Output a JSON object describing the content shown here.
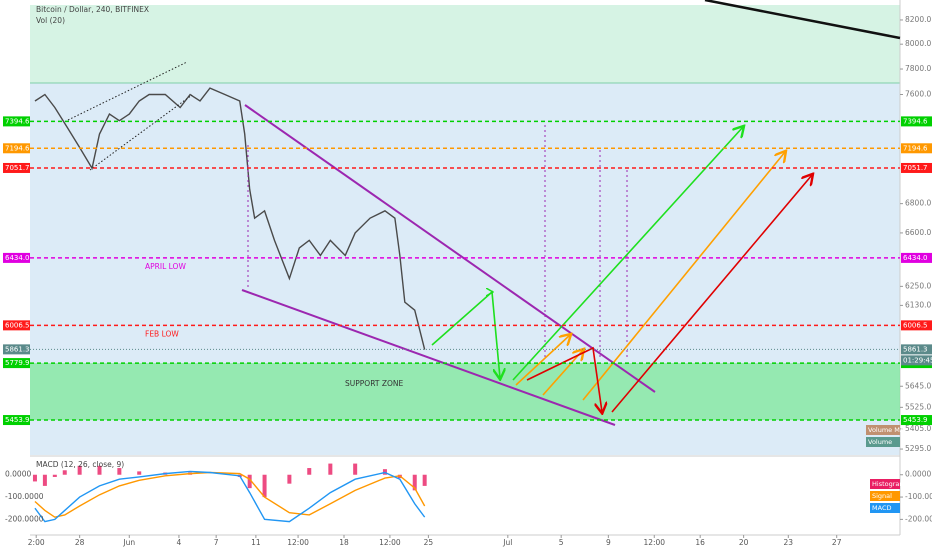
{
  "chart_data": [
    {
      "type": "line",
      "title": "Bitcoin / Dollar, 240, BITFINEX",
      "subtitle": "Vol (20)",
      "log_scale": true,
      "x": [
        -3.6,
        -2.8,
        -2.0,
        -1.2,
        0,
        1.0,
        1.6,
        2.4,
        3.2,
        4.0,
        4.8,
        5.6,
        6.9,
        8.1,
        8.9,
        9.7,
        10.5,
        11.7,
        12.9,
        13.3,
        13.7,
        14.1,
        14.9,
        15.7,
        16.9,
        17.7,
        18.5,
        19.4,
        20.2,
        21.4,
        22.2,
        23.4,
        24.6,
        25.4,
        25.8,
        26.2,
        27.0,
        27.8
      ],
      "series": [
        {
          "color": "#4a4a4a",
          "values": [
            7550,
            7600,
            7500,
            7380,
            7200,
            7050,
            7300,
            7450,
            7400,
            7450,
            7550,
            7600,
            7600,
            7500,
            7600,
            7550,
            7650,
            7600,
            7550,
            7300,
            6900,
            6700,
            6750,
            6550,
            6300,
            6500,
            6550,
            6450,
            6550,
            6450,
            6600,
            6700,
            6750,
            6700,
            6450,
            6150,
            6100,
            5860
          ]
        }
      ],
      "xlim": [
        -4,
        66.1
      ],
      "xticks": [
        {
          "value": -3.5,
          "label": "2:00"
        },
        {
          "value": 0,
          "label": "28"
        },
        {
          "value": 4,
          "label": "Jun"
        },
        {
          "value": 8,
          "label": "4"
        },
        {
          "value": 11,
          "label": "7"
        },
        {
          "value": 14.2,
          "label": "11"
        },
        {
          "value": 17.6,
          "label": "12:00"
        },
        {
          "value": 21.3,
          "label": "18"
        },
        {
          "value": 25,
          "label": "12:00"
        },
        {
          "value": 28.1,
          "label": "25"
        },
        {
          "value": 34.5,
          "label": "Jul"
        },
        {
          "value": 38.8,
          "label": "5"
        },
        {
          "value": 42.6,
          "label": "9"
        },
        {
          "value": 46.3,
          "label": "12:00"
        },
        {
          "value": 50,
          "label": "16"
        },
        {
          "value": 53.5,
          "label": "20"
        },
        {
          "value": 57.1,
          "label": "23"
        },
        {
          "value": 61,
          "label": "27"
        }
      ],
      "ylim": [
        5263,
        8326
      ],
      "yticks": [
        {
          "value": 8200,
          "label": "8200.0"
        },
        {
          "value": 8000,
          "label": "8000.0"
        },
        {
          "value": 7800,
          "label": "7800.0"
        },
        {
          "value": 7600,
          "label": "7600.0"
        },
        {
          "value": 6800,
          "label": "6800.0"
        },
        {
          "value": 6600,
          "label": "6600.0"
        },
        {
          "value": 6250,
          "label": "6250.0"
        },
        {
          "value": 6130,
          "label": "6130.0"
        },
        {
          "value": 5645,
          "label": "5645.0"
        },
        {
          "value": 5525,
          "label": "5525.0"
        },
        {
          "value": 5405,
          "label": "5405.0"
        },
        {
          "value": 5295,
          "label": "5295.0"
        }
      ],
      "levels": [
        {
          "price": 7394.6,
          "color": "#00d000"
        },
        {
          "price": 7194.6,
          "color": "#ff9800"
        },
        {
          "price": 7051.7,
          "color": "#ff1a1a"
        },
        {
          "price": {
            "value": 6434,
            "label": "6434.0"
          },
          "color": "#e000e0",
          "note": "APRIL LOW"
        },
        {
          "price": 6006.5,
          "color": "#ff1a1a",
          "note": "FEB LOW"
        },
        {
          "price": 5779.9,
          "color": "#00d000"
        },
        {
          "price": 5453.9,
          "color": "#00d000"
        }
      ],
      "zone_label": "SUPPORT ZONE",
      "last_price": 5861.3,
      "countdown": "01:29:45",
      "volume_labels": [
        "Volume MA",
        "Volume"
      ]
    },
    {
      "type": "line",
      "title": "MACD (12, 26, close, 9)",
      "x": [
        -3.6,
        -2.8,
        -2.0,
        -1.2,
        0,
        1.6,
        3.2,
        4.8,
        6.9,
        8.9,
        10.5,
        12.9,
        13.7,
        14.9,
        16.9,
        18.5,
        20.2,
        22.2,
        24.6,
        25.8,
        27.0,
        27.8
      ],
      "series": [
        {
          "name": "Histogram",
          "color": "#e91e63",
          "kind": "bar",
          "values": [
            -30,
            -50,
            -10,
            20,
            40,
            40,
            30,
            15,
            10,
            10,
            0,
            -10,
            -60,
            -100,
            -40,
            30,
            50,
            50,
            25,
            -15,
            -70,
            -50
          ]
        },
        {
          "name": "Signal",
          "color": "#ff9800",
          "values": [
            -120,
            -160,
            -190,
            -180,
            -140,
            -90,
            -50,
            -25,
            -5,
            5,
            10,
            5,
            -20,
            -100,
            -170,
            -180,
            -130,
            -70,
            -15,
            -5,
            -60,
            -140
          ]
        },
        {
          "name": "MACD",
          "color": "#2196f3",
          "values": [
            -150,
            -210,
            -200,
            -160,
            -100,
            -50,
            -20,
            -10,
            5,
            15,
            10,
            -5,
            -80,
            -200,
            -210,
            -150,
            -80,
            -20,
            10,
            -20,
            -130,
            -190
          ]
        }
      ],
      "ylim": [
        -270,
        75
      ],
      "yticks": [
        {
          "value": 0,
          "label": "0.0000"
        },
        {
          "value": -100,
          "label": "-100.0000"
        },
        {
          "value": -200,
          "label": "-200.0000"
        }
      ]
    }
  ]
}
